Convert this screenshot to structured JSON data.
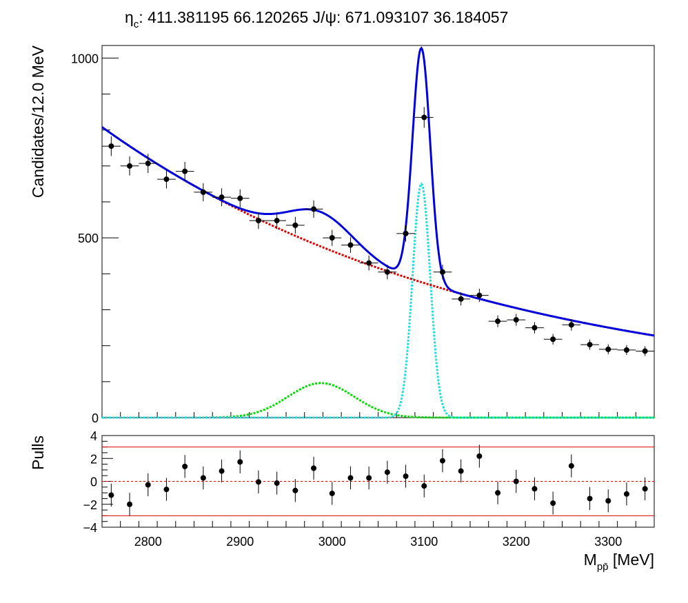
{
  "title": {
    "p1": "η",
    "p1sub": "c",
    "p2": ": 411.381195 66.120265 J/ψ: 671.093107 36.184057"
  },
  "chart_data": [
    {
      "type": "scatter",
      "panel": "main",
      "ylabel": "Candidates/12.0 MeV",
      "xlim": [
        2750,
        3350
      ],
      "ylim": [
        0,
        1035
      ],
      "yticks": [
        0,
        500,
        1000
      ],
      "x": [
        2760,
        2780,
        2800,
        2820,
        2840,
        2860,
        2880,
        2900,
        2920,
        2940,
        2960,
        2980,
        3000,
        3020,
        3040,
        3060,
        3080,
        3100,
        3120,
        3140,
        3160,
        3180,
        3200,
        3220,
        3240,
        3260,
        3280,
        3300,
        3320,
        3340
      ],
      "y": [
        755,
        700,
        707,
        663,
        685,
        627,
        613,
        610,
        548,
        548,
        535,
        580,
        500,
        480,
        430,
        405,
        512,
        835,
        405,
        330,
        340,
        268,
        272,
        250,
        218,
        258,
        203,
        190,
        188,
        185
      ],
      "fit_total_color": "#0000dd",
      "background_color": "#dd0000",
      "eta_c_color": "#00dd00",
      "jpsi_color": "#22dddd",
      "marker_color": "#000000"
    },
    {
      "type": "scatter",
      "panel": "pulls",
      "ylabel": "Pulls",
      "xlabel_main": "M",
      "xlabel_sub": "pp̄",
      "xlabel_unit": " [MeV]",
      "xlim": [
        2750,
        3350
      ],
      "ylim": [
        -4,
        4
      ],
      "yticks": [
        -4,
        -2,
        0,
        2,
        4
      ],
      "xticks": [
        2800,
        2900,
        3000,
        3100,
        3200,
        3300
      ],
      "x": [
        2760,
        2780,
        2800,
        2820,
        2840,
        2860,
        2880,
        2900,
        2920,
        2940,
        2960,
        2980,
        3000,
        3020,
        3040,
        3060,
        3080,
        3100,
        3120,
        3140,
        3160,
        3180,
        3200,
        3220,
        3240,
        3260,
        3280,
        3300,
        3320,
        3340
      ],
      "pulls": [
        -1.2,
        -2.0,
        -0.3,
        -0.7,
        1.3,
        0.3,
        0.9,
        1.7,
        -0.05,
        -0.15,
        -0.8,
        1.15,
        -1.05,
        0.3,
        0.3,
        0.8,
        0.45,
        -0.4,
        1.8,
        0.9,
        2.2,
        -1.0,
        0.0,
        -0.65,
        -1.9,
        1.35,
        -1.5,
        -1.7,
        -1.1,
        -0.65
      ],
      "reference_lines": [
        -3,
        0,
        3
      ],
      "reference_color": "#dd0000"
    }
  ]
}
